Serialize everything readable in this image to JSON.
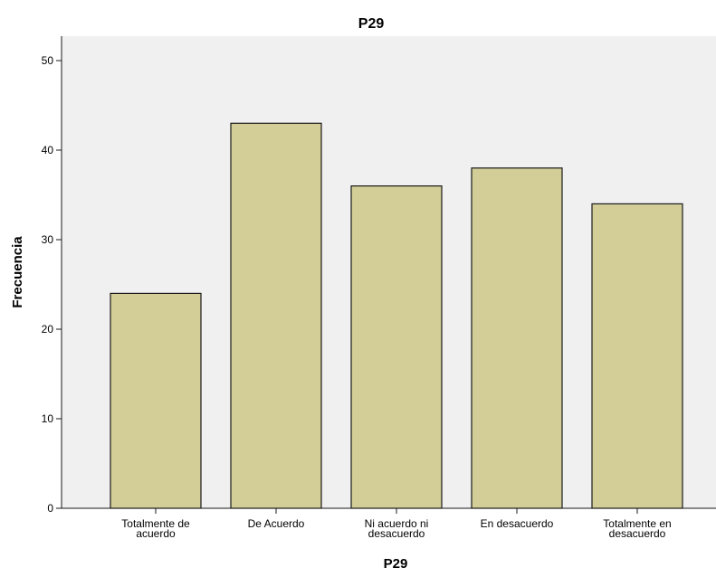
{
  "chart_data": {
    "type": "bar",
    "title": "P29",
    "xlabel": "P29",
    "ylabel": "Frecuencia",
    "categories": [
      [
        "Totalmente de",
        "acuerdo"
      ],
      [
        "De Acuerdo"
      ],
      [
        "Ni acuerdo ni",
        "desacuerdo"
      ],
      [
        "En desacuerdo"
      ],
      [
        "Totalmente en",
        "desacuerdo"
      ]
    ],
    "values": [
      24,
      43,
      36,
      38,
      34
    ],
    "ylim": [
      0,
      52
    ],
    "yticks": [
      "0",
      "10",
      "20",
      "30",
      "40",
      "50"
    ],
    "grid": false,
    "legend": "none",
    "colors": {
      "bar_fill": "#d3ce97",
      "bar_stroke": "#1a1a1a",
      "plot_background": "#f0f0f0",
      "axis": "#1a1a1a",
      "text": "#000000"
    }
  }
}
